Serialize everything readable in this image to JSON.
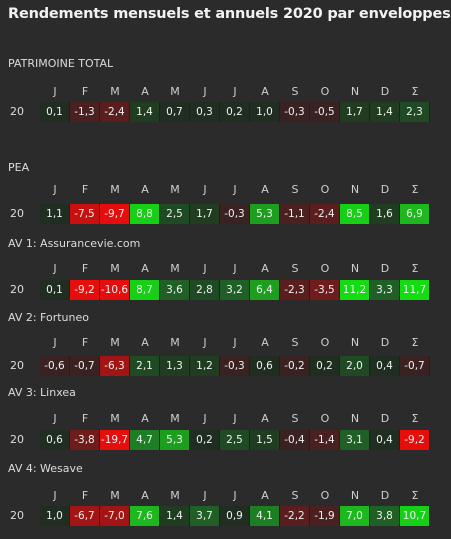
{
  "title": "Rendements mensuels et annuels 2020 par enveloppes",
  "months": [
    "J",
    "F",
    "M",
    "A",
    "M",
    "J",
    "J",
    "A",
    "S",
    "O",
    "N",
    "D",
    "Σ"
  ],
  "sections": [
    {
      "label": "PATRIMOINE TOTAL",
      "year": "20",
      "values": [
        "0,1",
        "-1,3",
        "-2,4",
        "1,4",
        "0,7",
        "0,3",
        "0,2",
        "1,0",
        "-0,3",
        "-0,5",
        "1,7",
        "1,4",
        "2,3"
      ],
      "nums": [
        0.1,
        -1.3,
        -2.4,
        1.4,
        0.7,
        0.3,
        0.2,
        1.0,
        -0.3,
        -0.5,
        1.7,
        1.4,
        2.3
      ]
    },
    {
      "label": "PEA",
      "year": "20",
      "values": [
        "1,1",
        "-7,5",
        "-9,7",
        "8,8",
        "2,5",
        "1,7",
        "-0,3",
        "5,3",
        "-1,1",
        "-2,4",
        "8,5",
        "1,6",
        "6,9"
      ],
      "nums": [
        1.1,
        -7.5,
        -9.7,
        8.8,
        2.5,
        1.7,
        -0.3,
        5.3,
        -1.1,
        -2.4,
        8.5,
        1.6,
        6.9
      ]
    },
    {
      "label": "AV 1:  Assurancevie.com",
      "year": "20",
      "values": [
        "0,1",
        "-9,2",
        "-10,6",
        "8,7",
        "3,6",
        "2,8",
        "3,2",
        "6,4",
        "-2,3",
        "-3,5",
        "11,2",
        "3,3",
        "11,7"
      ],
      "nums": [
        0.1,
        -9.2,
        -10.6,
        8.7,
        3.6,
        2.8,
        3.2,
        6.4,
        -2.3,
        -3.5,
        11.2,
        3.3,
        11.7
      ]
    },
    {
      "label": "AV 2: Fortuneo",
      "year": "20",
      "values": [
        "-0,6",
        "-0,7",
        "-6,3",
        "2,1",
        "1,3",
        "1,2",
        "-0,3",
        "0,6",
        "-0,2",
        "0,2",
        "2,0",
        "0,4",
        "-0,7"
      ],
      "nums": [
        -0.6,
        -0.7,
        -6.3,
        2.1,
        1.3,
        1.2,
        -0.3,
        0.6,
        -0.2,
        0.2,
        2.0,
        0.4,
        -0.7
      ]
    },
    {
      "label": "AV 3: Linxea",
      "year": "20",
      "values": [
        "0,6",
        "-3,8",
        "-19,7",
        "4,7",
        "5,3",
        "0,2",
        "2,5",
        "1,5",
        "-0,4",
        "-1,4",
        "3,1",
        "0,4",
        "-9,2"
      ],
      "nums": [
        0.6,
        -3.8,
        -19.7,
        4.7,
        5.3,
        0.2,
        2.5,
        1.5,
        -0.4,
        -1.4,
        3.1,
        0.4,
        -9.2
      ]
    },
    {
      "label": "AV 4: Wesave",
      "year": "20",
      "values": [
        "1,0",
        "-6,7",
        "-7,0",
        "7,6",
        "1,4",
        "3,7",
        "0,9",
        "4,1",
        "-2,2",
        "-1,9",
        "7,0",
        "3,8",
        "10,7"
      ],
      "nums": [
        1.0,
        -6.7,
        -7.0,
        7.6,
        1.4,
        3.7,
        0.9,
        4.1,
        -2.2,
        -1.9,
        7.0,
        3.8,
        10.7
      ]
    }
  ]
}
